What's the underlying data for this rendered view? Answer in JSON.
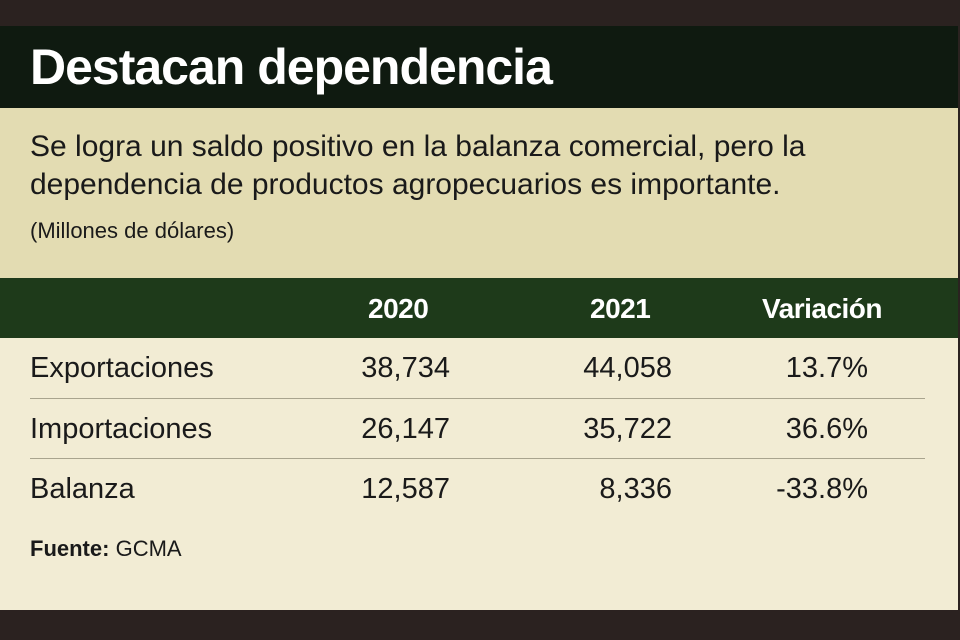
{
  "title": "Destacan dependencia",
  "subtitle": {
    "line1": "Se logra un saldo positivo en la balanza comercial, pero la",
    "line2": "dependencia de productos agropecuarios es importante.",
    "units": "(Millones de dólares)"
  },
  "table": {
    "headers": [
      "2020",
      "2021",
      "Variación"
    ],
    "rows": [
      {
        "label": "Exportaciones",
        "y2020": "38,734",
        "y2021": "44,058",
        "variation": "13.7%"
      },
      {
        "label": "Importaciones",
        "y2020": "26,147",
        "y2021": "35,722",
        "variation": "36.6%"
      },
      {
        "label": "Balanza",
        "y2020": "12,587",
        "y2021": "8,336",
        "variation": "-33.8%"
      }
    ]
  },
  "source": {
    "label": "Fuente:",
    "value": "GCMA"
  },
  "colors": {
    "title_bg": "#0f1a10",
    "subtitle_bg": "#e3dcb2",
    "header_bg": "#1e3a1a",
    "body_bg": "#f2ecd4",
    "frame": "#2b2220"
  }
}
